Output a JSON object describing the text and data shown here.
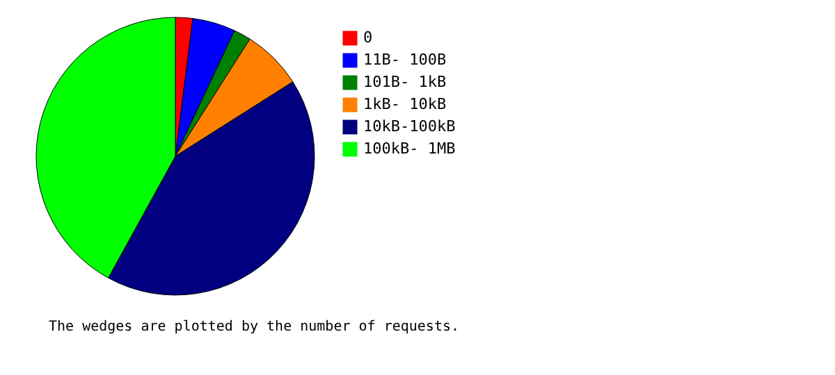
{
  "chart_data": {
    "type": "pie",
    "categories": [
      "0",
      "11B- 100B",
      "101B-  1kB",
      "1kB- 10kB",
      "10kB-100kB",
      "100kB-  1MB"
    ],
    "values": [
      2,
      5,
      2,
      7,
      42,
      42
    ],
    "colors": [
      "#ff0000",
      "#0000ff",
      "#008000",
      "#ff8000",
      "#000080",
      "#00ff00"
    ],
    "legend": "right",
    "annotations": [
      "The wedges are plotted by the number of requests."
    ]
  }
}
